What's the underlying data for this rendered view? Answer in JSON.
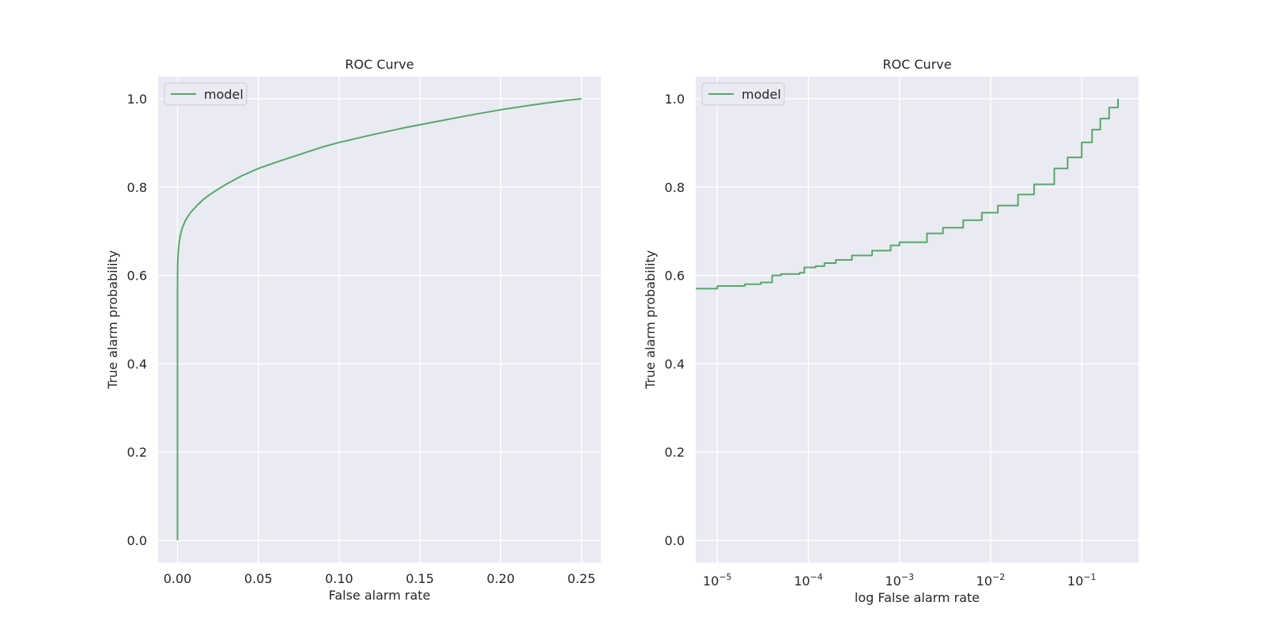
{
  "colors": {
    "background": "#eaeaf2",
    "grid": "#ffffff",
    "line": "#55a868",
    "text": "#262626"
  },
  "chart_data": [
    {
      "type": "line",
      "title": "ROC Curve",
      "xlabel": "False alarm rate",
      "ylabel": "True alarm probability",
      "xscale": "linear",
      "xlim": [
        -0.012,
        0.262
      ],
      "ylim": [
        -0.05,
        1.05
      ],
      "xticks": [
        0.0,
        0.05,
        0.1,
        0.15,
        0.2,
        0.25
      ],
      "xtick_labels": [
        "0.00",
        "0.05",
        "0.10",
        "0.15",
        "0.20",
        "0.25"
      ],
      "yticks": [
        0.0,
        0.2,
        0.4,
        0.6,
        0.8,
        1.0
      ],
      "ytick_labels": [
        "0.0",
        "0.2",
        "0.4",
        "0.6",
        "0.8",
        "1.0"
      ],
      "grid": true,
      "legend": "upper left",
      "series": [
        {
          "name": "model",
          "color": "#55a868",
          "x": [
            0.0,
            0.0,
            1e-05,
            2e-05,
            4e-05,
            0.0001,
            0.0002,
            0.0005,
            0.001,
            0.002,
            0.003,
            0.005,
            0.008,
            0.012,
            0.016,
            0.02,
            0.025,
            0.03,
            0.04,
            0.05,
            0.06,
            0.07,
            0.08,
            0.09,
            0.1,
            0.12,
            0.14,
            0.16,
            0.18,
            0.2,
            0.22,
            0.24,
            0.25
          ],
          "y": [
            0.0,
            0.57,
            0.575,
            0.58,
            0.6,
            0.62,
            0.635,
            0.655,
            0.675,
            0.695,
            0.708,
            0.725,
            0.742,
            0.758,
            0.772,
            0.783,
            0.795,
            0.806,
            0.826,
            0.842,
            0.855,
            0.867,
            0.879,
            0.891,
            0.901,
            0.918,
            0.934,
            0.948,
            0.962,
            0.975,
            0.986,
            0.996,
            1.0
          ]
        }
      ]
    },
    {
      "type": "line",
      "title": "ROC Curve",
      "xlabel": "log False alarm rate",
      "ylabel": "True alarm probability",
      "xscale": "log",
      "xlim": [
        5.8e-06,
        0.42
      ],
      "ylim": [
        -0.05,
        1.05
      ],
      "xticks": [
        1e-05,
        0.0001,
        0.001,
        0.01,
        0.1
      ],
      "xtick_labels": [
        {
          "base": "10",
          "exp": "−5"
        },
        {
          "base": "10",
          "exp": "−4"
        },
        {
          "base": "10",
          "exp": "−3"
        },
        {
          "base": "10",
          "exp": "−2"
        },
        {
          "base": "10",
          "exp": "−1"
        }
      ],
      "yticks": [
        0.0,
        0.2,
        0.4,
        0.6,
        0.8,
        1.0
      ],
      "ytick_labels": [
        "0.0",
        "0.2",
        "0.4",
        "0.6",
        "0.8",
        "1.0"
      ],
      "grid": true,
      "legend": "upper left",
      "series": [
        {
          "name": "model",
          "color": "#55a868",
          "step": true,
          "x": [
            5.8e-06,
            1e-05,
            2e-05,
            3e-05,
            4e-05,
            5e-05,
            8e-05,
            9e-05,
            0.00012,
            0.00015,
            0.0002,
            0.0003,
            0.0005,
            0.0008,
            0.001,
            0.002,
            0.003,
            0.005,
            0.008,
            0.012,
            0.02,
            0.03,
            0.05,
            0.07,
            0.1,
            0.13,
            0.16,
            0.2,
            0.25
          ],
          "y": [
            0.57,
            0.576,
            0.58,
            0.584,
            0.6,
            0.603,
            0.606,
            0.618,
            0.621,
            0.628,
            0.635,
            0.645,
            0.656,
            0.668,
            0.675,
            0.695,
            0.708,
            0.725,
            0.742,
            0.758,
            0.783,
            0.806,
            0.842,
            0.867,
            0.901,
            0.93,
            0.955,
            0.98,
            1.0
          ]
        }
      ]
    }
  ]
}
